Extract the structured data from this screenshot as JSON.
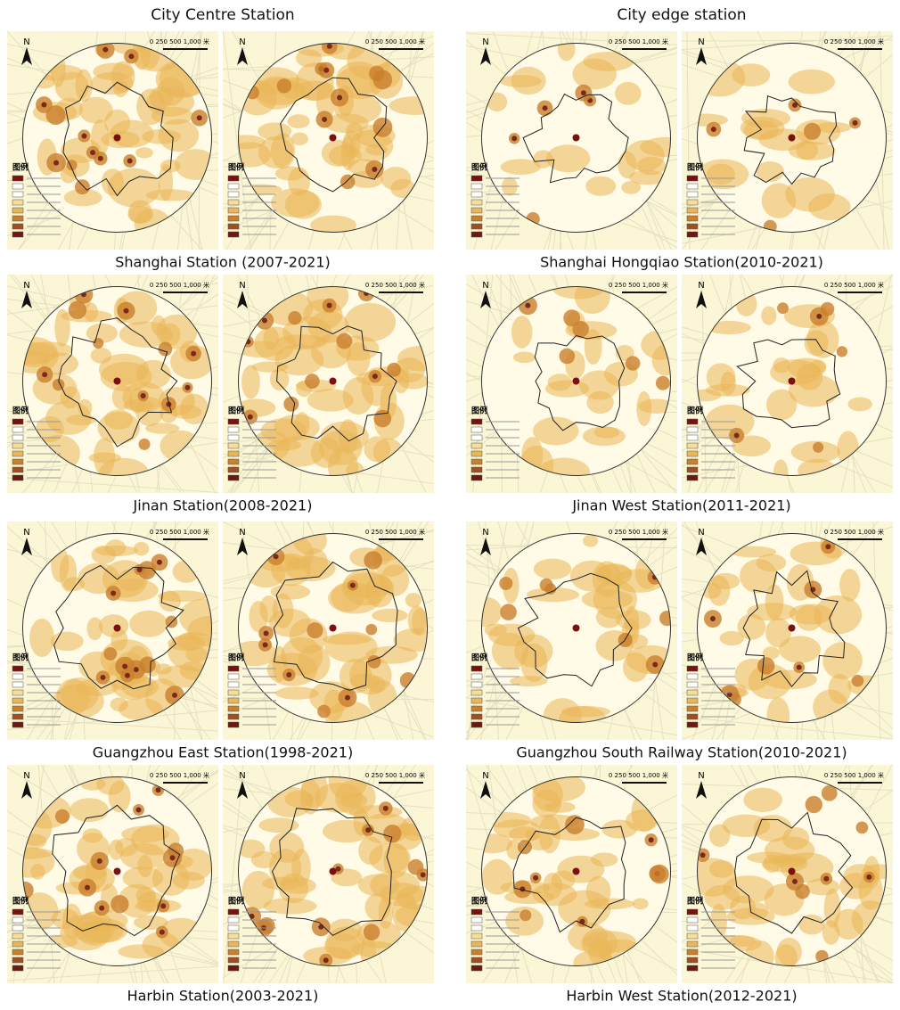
{
  "columns": [
    {
      "title": "City Centre Station",
      "stations": [
        {
          "caption": "Shanghai Station (2007-2021)"
        },
        {
          "caption": "Jinan Station(2008-2021)"
        },
        {
          "caption": "Guangzhou East Station(1998-2021)"
        },
        {
          "caption": "Harbin Station(2003-2021)"
        }
      ]
    },
    {
      "title": "City edge station",
      "stations": [
        {
          "caption": "Shanghai Hongqiao Station(2010-2021)"
        },
        {
          "caption": "Jinan West Station(2011-2021)"
        },
        {
          "caption": "Guangzhou South Railway Station(2010-2021)"
        },
        {
          "caption": "Harbin West Station(2012-2021)"
        }
      ]
    }
  ],
  "map_text": {
    "north": "N",
    "legend": "图例",
    "scale": "0 250 500 1,000 米"
  }
}
